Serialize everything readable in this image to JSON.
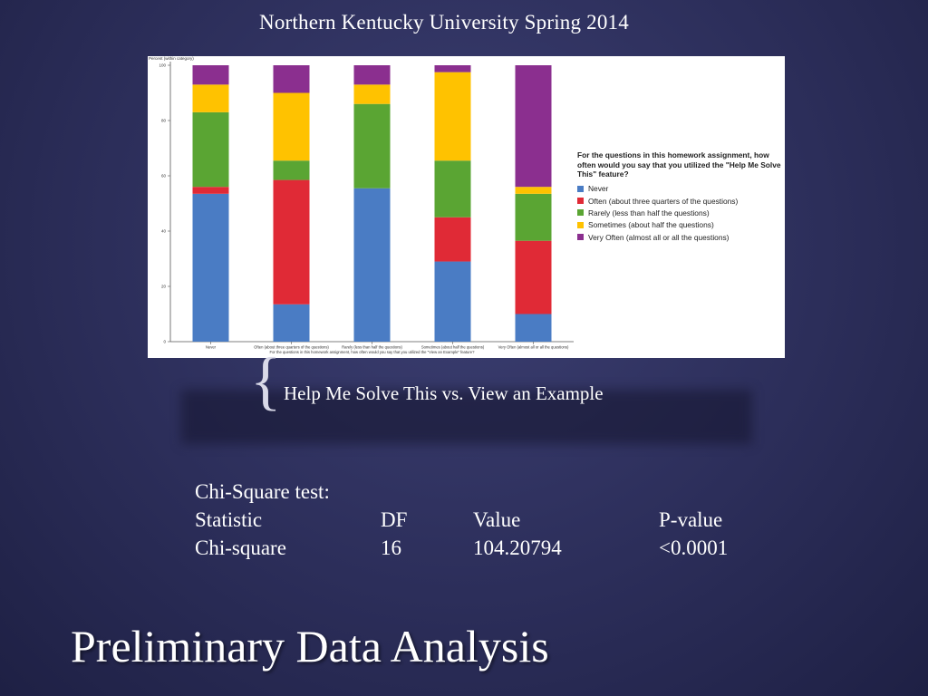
{
  "slide": {
    "header": "Northern Kentucky University Spring 2014",
    "subtitle": "Help Me Solve This vs. View an Example",
    "brace": "{",
    "title": "Preliminary Data Analysis"
  },
  "stats": {
    "heading": "Chi-Square test:",
    "columns": [
      "Statistic",
      "DF",
      "Value",
      "P-value"
    ],
    "row": [
      "Chi-square",
      "16",
      "104.20794",
      "<0.0001"
    ]
  },
  "chart_data": {
    "type": "bar",
    "stacked": true,
    "ylabel": "Percent (within category)",
    "xlabel": "For the questions in this homework assignment, how often would you say that you utilized the \"View an Example\" feature?",
    "ylim": [
      0,
      100
    ],
    "yticks": [
      0,
      20,
      40,
      60,
      80,
      100
    ],
    "categories": [
      "Never",
      "Often (about three quarters of the questions)",
      "Rarely (less than half the questions)",
      "Sometimes (about half the questions)",
      "Very Often (almost all or all the questions)"
    ],
    "legend_title": "For the questions in this homework assignment, how often would you say that you utilized the \"Help Me Solve This\" feature?",
    "legend_position": "right",
    "grid": false,
    "series": [
      {
        "name": "Never",
        "color": "#4a7cc4",
        "values": [
          53.5,
          13.5,
          55.5,
          29,
          10
        ]
      },
      {
        "name": "Often (about three quarters of the questions)",
        "color": "#e02a36",
        "values": [
          2.5,
          45,
          0,
          16,
          26.5
        ]
      },
      {
        "name": "Rarely (less than half the questions)",
        "color": "#5aa533",
        "values": [
          27,
          7,
          30.5,
          20.5,
          17
        ]
      },
      {
        "name": "Sometimes (about half the questions)",
        "color": "#ffc200",
        "values": [
          10,
          24.5,
          7,
          32,
          2.5
        ]
      },
      {
        "name": "Very Often (almost all or all the questions)",
        "color": "#8b2f8f",
        "values": [
          7,
          10,
          7,
          2.5,
          44
        ]
      }
    ]
  }
}
